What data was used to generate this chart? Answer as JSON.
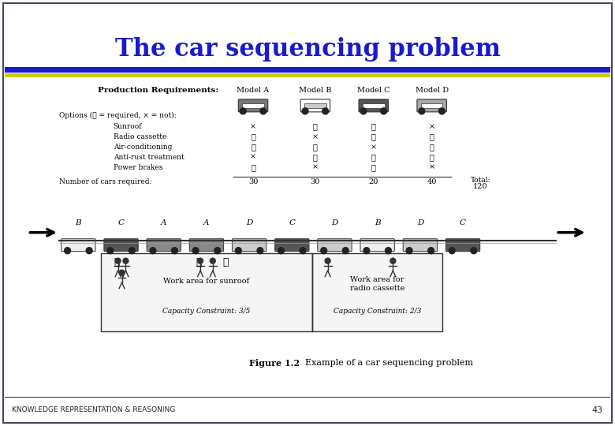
{
  "title": "The car sequencing problem",
  "title_color": "#1a1acc",
  "title_fontsize": 22,
  "footer_text": "KNOWLEDGE REPRESENTATION & REASONING",
  "footer_number": "43",
  "bg_color": "#ffffff",
  "border_color": "#444466",
  "header_line_blue": "#1a1acc",
  "header_line_yellow": "#cccc00",
  "prod_req_title": "Production Requirements:",
  "options_label": "Options (✓ = required, × = not):",
  "options": [
    "Sunroof",
    "Radio cassette",
    "Air-conditioning",
    "Anti-rust treatment",
    "Power brakes"
  ],
  "models": [
    "Model A",
    "Model B",
    "Model C",
    "Model D"
  ],
  "table_data": [
    [
      "×",
      "✓",
      "✓",
      "×"
    ],
    [
      "✓",
      "×",
      "✓",
      "✓"
    ],
    [
      "✓",
      "✓",
      "×",
      "✓"
    ],
    [
      "×",
      "✓",
      "✓",
      "✓"
    ],
    [
      "✓",
      "×",
      "✓",
      "×"
    ]
  ],
  "cars_required_label": "Number of cars required:",
  "cars_required": [
    "30",
    "30",
    "20",
    "40"
  ],
  "total_label": "Total:",
  "total_value": "120",
  "sequence": [
    "B",
    "C",
    "A",
    "A",
    "D",
    "C",
    "D",
    "B",
    "D",
    "C"
  ],
  "figure_caption_bold": "Figure 1.2",
  "figure_caption_normal": "  Example of a car sequencing problem",
  "work_area1": "Work area for sunroof",
  "work_area2": "Work area for\nradio cassette",
  "capacity1": "Capacity Constraint: 3/5",
  "capacity2": "Capacity Constraint: 2/3",
  "seq_colors": {
    "A": "#888888",
    "B": "#eeeeee",
    "C": "#555555",
    "D": "#cccccc"
  }
}
